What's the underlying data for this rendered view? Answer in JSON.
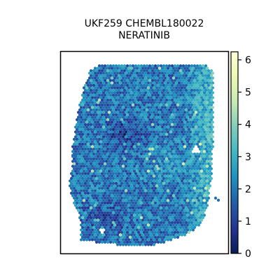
{
  "chart_data": {
    "type": "scatter",
    "title_lines": [
      "UKF259 CHEMBL180022",
      "NERATINIB"
    ],
    "xlabel": "",
    "ylabel": "",
    "xticks": [],
    "yticks": [],
    "points": "hexagonal spatial spots, colored by value",
    "colorbar": {
      "colormap": "YlGnBu",
      "range": [
        0,
        6.25
      ],
      "ticks": [
        0,
        1,
        2,
        3,
        4,
        5,
        6
      ],
      "tick_labels": [
        "0",
        "1",
        "2",
        "3",
        "4",
        "5",
        "6"
      ]
    },
    "value_summary": {
      "typical_range": [
        0.5,
        3.5
      ],
      "low_region": "upper-left interior and lower-left",
      "high_region": "right edge (values up to about 5)"
    }
  },
  "colors": {
    "cmap_stops": [
      "#ffffd9",
      "#edf8b1",
      "#c7e9b4",
      "#7fcdbb",
      "#41b6c4",
      "#1d91c0",
      "#225ea8",
      "#253494",
      "#081d58"
    ]
  }
}
